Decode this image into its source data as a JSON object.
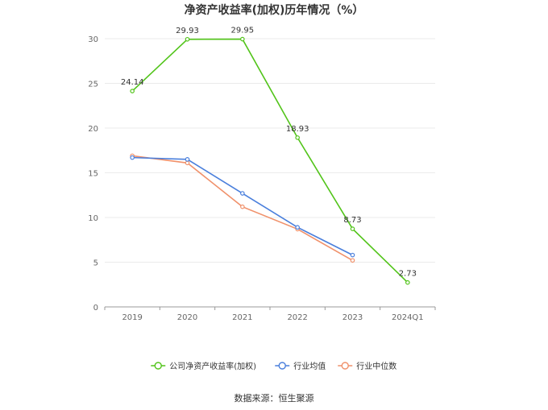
{
  "chart_data": {
    "type": "line",
    "title": "净资产收益率(加权)历年情况（%）",
    "categories": [
      "2019",
      "2020",
      "2021",
      "2022",
      "2023",
      "2024Q1"
    ],
    "ylim": [
      0,
      30
    ],
    "yticks": [
      0,
      5,
      10,
      15,
      20,
      25,
      30
    ],
    "grid": true,
    "legend_position": "bottom-center",
    "series": [
      {
        "name": "公司净资产收益率(加权)",
        "color": "#52c41a",
        "values": [
          24.14,
          29.93,
          29.95,
          18.93,
          8.73,
          2.73
        ],
        "labels": [
          "24.14",
          "29.93",
          "29.95",
          "18.93",
          "8.73",
          "2.73"
        ]
      },
      {
        "name": "行业均值",
        "color": "#4a7fdc",
        "values": [
          16.7,
          16.5,
          12.7,
          8.9,
          5.8,
          null
        ]
      },
      {
        "name": "行业中位数",
        "color": "#f0916b",
        "values": [
          16.9,
          16.1,
          11.2,
          8.7,
          5.2,
          null
        ]
      }
    ]
  },
  "source": "数据来源：恒生聚源"
}
